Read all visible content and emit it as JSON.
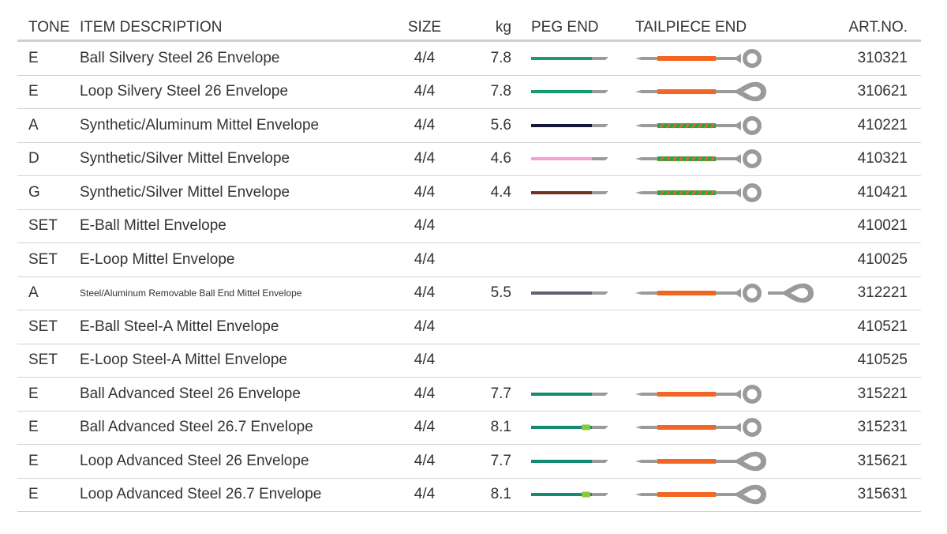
{
  "header": {
    "tone": "TONE",
    "description": "ITEM DESCRIPTION",
    "size": "SIZE",
    "kg": "kg",
    "peg_end": "PEG END",
    "tailpiece_end": "TAILPIECE END",
    "art_no": "ART.NO."
  },
  "colors": {
    "steel": "#9a9a9a",
    "green": "#1a9a74",
    "orange": "#f26522",
    "navy": "#14163a",
    "pink": "#f2a0d4",
    "brown": "#6b3520",
    "slate": "#5d6171",
    "teal": "#138a74",
    "lime": "#8cc63f",
    "wrap_green": "#2aa34a"
  },
  "rows": [
    {
      "tone": "E",
      "description": "Ball Silvery Steel 26 Envelope",
      "size": "4/4",
      "kg": "7.8",
      "art_no": "310321",
      "peg": "green",
      "tail": "orange-ball"
    },
    {
      "tone": "E",
      "description": "Loop Silvery Steel 26 Envelope",
      "size": "4/4",
      "kg": "7.8",
      "art_no": "310621",
      "peg": "green",
      "tail": "orange-loop"
    },
    {
      "tone": "A",
      "description": "Synthetic/Aluminum Mittel Envelope",
      "size": "4/4",
      "kg": "5.6",
      "art_no": "410221",
      "peg": "navy",
      "tail": "wound-ball"
    },
    {
      "tone": "D",
      "description": "Synthetic/Silver Mittel Envelope",
      "size": "4/4",
      "kg": "4.6",
      "art_no": "410321",
      "peg": "pink",
      "tail": "wound-ball"
    },
    {
      "tone": "G",
      "description": "Synthetic/Silver Mittel Envelope",
      "size": "4/4",
      "kg": "4.4",
      "art_no": "410421",
      "peg": "brown",
      "tail": "wound-ball"
    },
    {
      "tone": "SET",
      "description": "E-Ball Mittel Envelope",
      "size": "4/4",
      "kg": "",
      "art_no": "410021",
      "peg": "",
      "tail": ""
    },
    {
      "tone": "SET",
      "description": "E-Loop Mittel Envelope",
      "size": "4/4",
      "kg": "",
      "art_no": "410025",
      "peg": "",
      "tail": ""
    },
    {
      "tone": "A",
      "description": "Steel/Aluminum Removable Ball End Mittel Envelope",
      "size": "4/4",
      "kg": "5.5",
      "art_no": "312221",
      "peg": "slate",
      "tail": "orange-ball-plus-loop",
      "small": true
    },
    {
      "tone": "SET",
      "description": "E-Ball Steel-A Mittel Envelope",
      "size": "4/4",
      "kg": "",
      "art_no": "410521",
      "peg": "",
      "tail": ""
    },
    {
      "tone": "SET",
      "description": "E-Loop Steel-A Mittel Envelope",
      "size": "4/4",
      "kg": "",
      "art_no": "410525",
      "peg": "",
      "tail": ""
    },
    {
      "tone": "E",
      "description": "Ball Advanced Steel 26 Envelope",
      "size": "4/4",
      "kg": "7.7",
      "art_no": "315221",
      "peg": "teal",
      "tail": "orange-ball"
    },
    {
      "tone": "E",
      "description": "Ball Advanced Steel 26.7 Envelope",
      "size": "4/4",
      "kg": "8.1",
      "art_no": "315231",
      "peg": "teal-lime",
      "tail": "orange-ball"
    },
    {
      "tone": "E",
      "description": "Loop Advanced Steel 26 Envelope",
      "size": "4/4",
      "kg": "7.7",
      "art_no": "315621",
      "peg": "teal",
      "tail": "orange-loop"
    },
    {
      "tone": "E",
      "description": "Loop Advanced Steel 26.7 Envelope",
      "size": "4/4",
      "kg": "8.1",
      "art_no": "315631",
      "peg": "teal-lime",
      "tail": "orange-loop"
    }
  ]
}
